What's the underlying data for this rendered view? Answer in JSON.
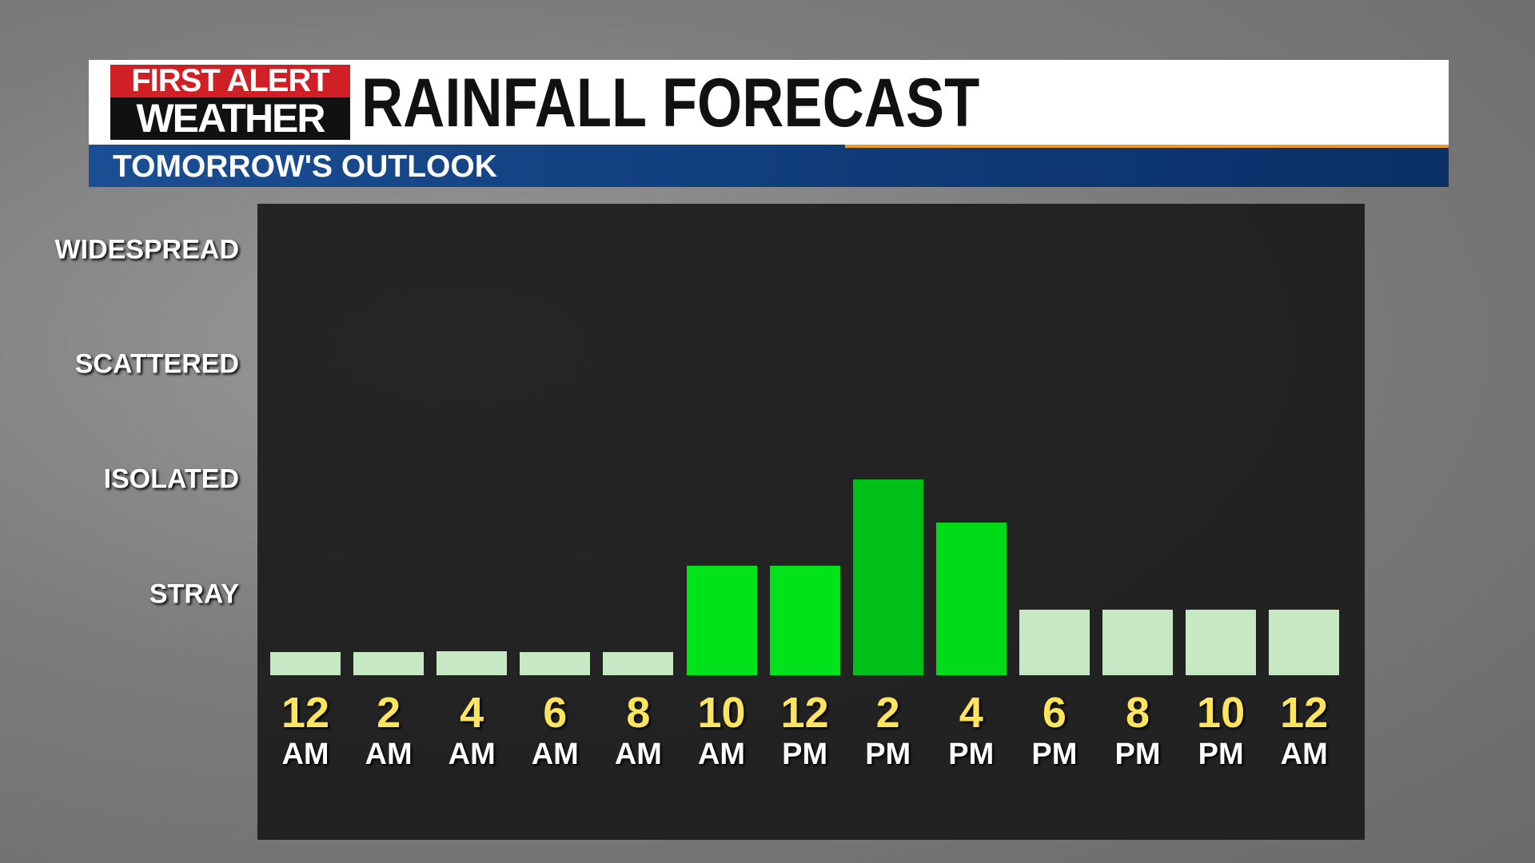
{
  "header": {
    "logo_line1": "FIRST ALERT",
    "logo_line2": "WEATHER"
  },
  "chart_data": {
    "type": "bar",
    "title": "RAINFALL FORECAST",
    "subtitle": "TOMORROW'S OUTLOOK",
    "categories": [
      "12 AM",
      "2 AM",
      "4 AM",
      "6 AM",
      "8 AM",
      "10 AM",
      "12 PM",
      "2 PM",
      "4 PM",
      "6 PM",
      "8 PM",
      "10 PM",
      "12 AM"
    ],
    "values": [
      0.5,
      0.5,
      0.51,
      0.5,
      0.5,
      1.25,
      1.25,
      2.0,
      1.63,
      0.87,
      0.87,
      0.87,
      0.87
    ],
    "colors": [
      "#c6e8c2",
      "#c6e8c2",
      "#c6e8c2",
      "#c6e8c2",
      "#c6e8c2",
      "#00e31a",
      "#00e31a",
      "#00bf16",
      "#00db18",
      "#c6e8c2",
      "#c6e8c2",
      "#c6e8c2",
      "#c6e8c2"
    ],
    "ylim": [
      0.3,
      4.4
    ],
    "yticks": [
      {
        "value": 1,
        "label": "STRAY"
      },
      {
        "value": 2,
        "label": "ISOLATED"
      },
      {
        "value": 3,
        "label": "SCATTERED"
      },
      {
        "value": 4,
        "label": "WIDESPREAD"
      }
    ]
  }
}
